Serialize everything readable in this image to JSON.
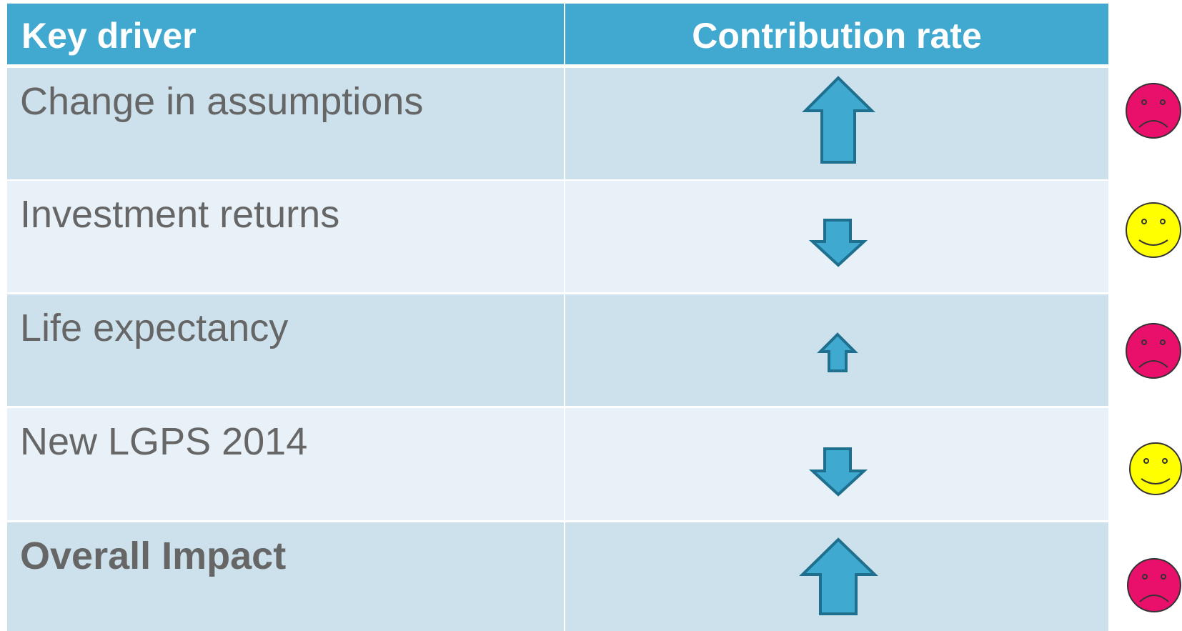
{
  "table": {
    "header": [
      "Key driver",
      "Contribution rate"
    ],
    "rows": [
      [
        "Change in assumptions"
      ],
      [
        "Investment returns"
      ],
      [
        "Life expectancy"
      ],
      [
        "New LGPS 2014"
      ],
      [
        "Overall Impact"
      ]
    ]
  }
}
